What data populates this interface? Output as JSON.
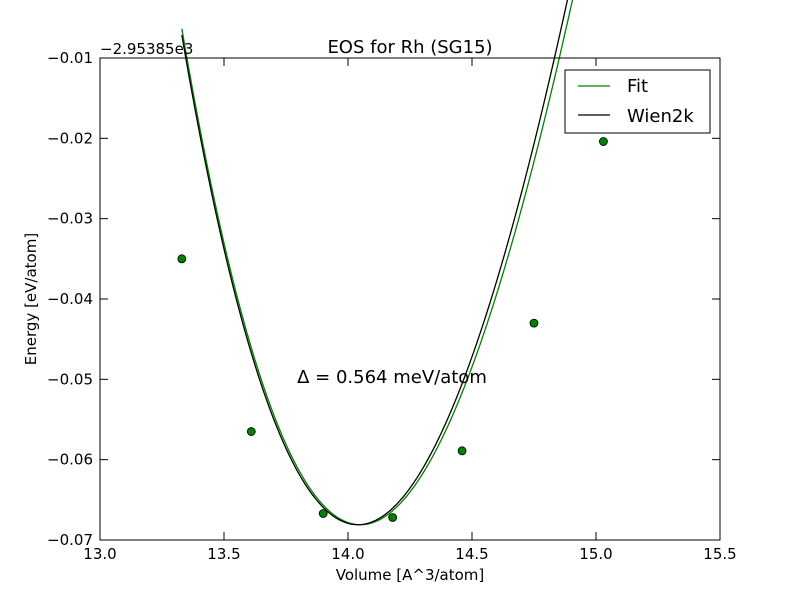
{
  "chart_data": {
    "type": "line",
    "title": "EOS for Rh (SG15)",
    "xlabel": "Volume [A^3/atom]",
    "ylabel": "Energy [eV/atom]",
    "y_offset_label": "−2.95385e3",
    "annotation": "Δ = 0.564 meV/atom",
    "xlim": [
      13.0,
      15.5
    ],
    "ylim": [
      -0.07,
      -0.01
    ],
    "xticks": [
      13.0,
      13.5,
      14.0,
      14.5,
      15.0,
      15.5
    ],
    "xtick_labels": [
      "13.0",
      "13.5",
      "14.0",
      "14.5",
      "15.0",
      "15.5"
    ],
    "yticks": [
      -0.07,
      -0.06,
      -0.05,
      -0.04,
      -0.03,
      -0.02,
      -0.01
    ],
    "ytick_labels": [
      "−0.07",
      "−0.06",
      "−0.05",
      "−0.04",
      "−0.03",
      "−0.02",
      "−0.01"
    ],
    "legend_position": "top-right",
    "grid": false,
    "series": [
      {
        "name": "Fit",
        "style": "line",
        "color": "#008000",
        "eos": {
          "v0": 14.05,
          "e0": -0.0681,
          "curvature": 0.1055,
          "cubic": -0.0189
        },
        "x_range": [
          13.33,
          15.03
        ]
      },
      {
        "name": "Wien2k",
        "style": "line",
        "color": "#000000",
        "eos": {
          "v0": 14.04,
          "e0": -0.0681,
          "curvature": 0.1075,
          "cubic": -0.0189
        },
        "x_range": [
          13.33,
          15.03
        ]
      },
      {
        "name": "data points",
        "style": "markers",
        "color": "#007f00",
        "x": [
          13.33,
          13.61,
          13.9,
          14.18,
          14.46,
          14.75,
          15.03
        ],
        "y": [
          -0.035,
          -0.0565,
          -0.0667,
          -0.0672,
          -0.0589,
          -0.043,
          -0.0204
        ]
      }
    ]
  }
}
